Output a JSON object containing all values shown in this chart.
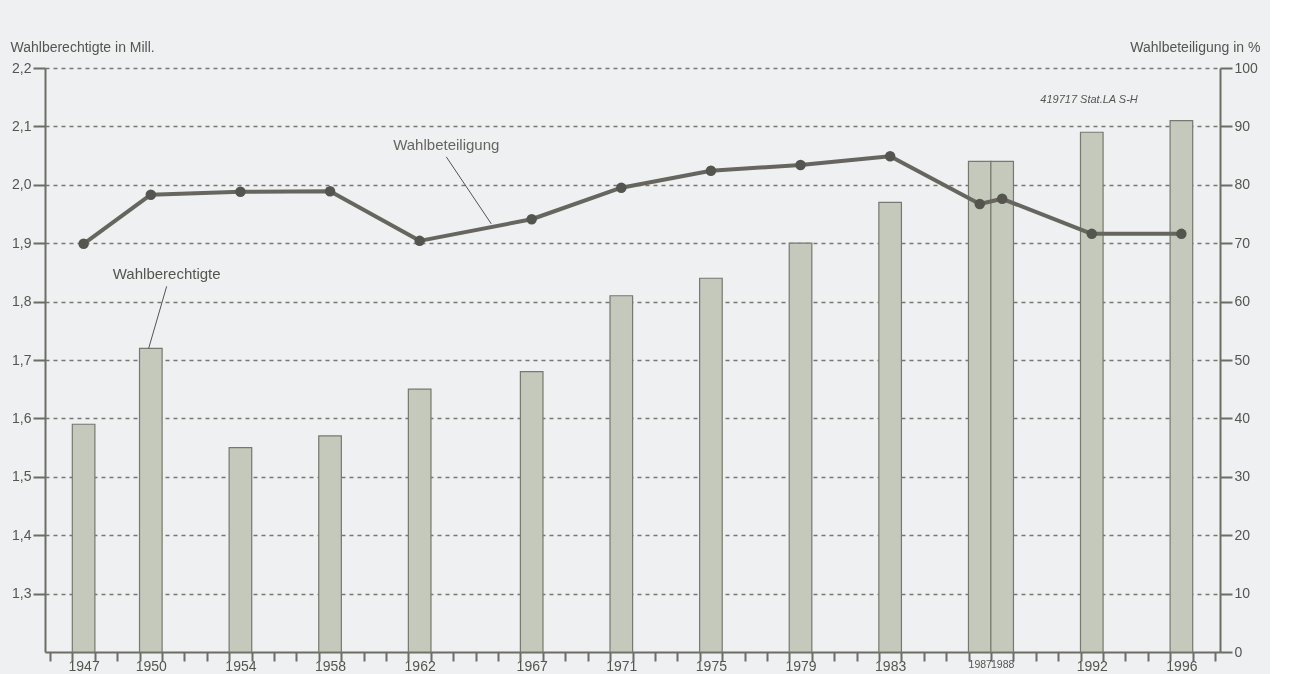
{
  "chart_data": {
    "type": "bar",
    "ylabel": "Wahlberechtigte in Mill.",
    "y2label": "Wahlbeteiligung in %",
    "x": [
      1947,
      1950,
      1954,
      1958,
      1962,
      1967,
      1971,
      1975,
      1979,
      1983,
      1987,
      1988,
      1992,
      1996
    ],
    "series": [
      {
        "name": "Wahlberechtigte",
        "color": "#c5c9bc",
        "values": [
          1.59,
          1.72,
          1.55,
          1.57,
          1.65,
          1.68,
          1.81,
          1.84,
          1.9,
          1.97,
          2.04,
          2.04,
          2.09,
          2.11
        ]
      },
      {
        "name": "Wahlbeteiligung",
        "type": "line",
        "axis": "y2",
        "color": "#66665f",
        "marker": "circle",
        "line_style": "solid",
        "values": [
          69.9,
          78.3,
          78.8,
          78.9,
          70.4,
          74.1,
          79.5,
          82.4,
          83.4,
          84.9,
          76.7,
          77.6,
          71.6,
          71.6
        ]
      }
    ],
    "xlim": [
      1945.5,
      1997.5
    ],
    "xticks": [
      {
        "value": 1945.5,
        "label": null
      },
      {
        "value": 1946.5,
        "label": null
      },
      1947,
      {
        "value": 1947.5,
        "label": null
      },
      {
        "value": 1948.5,
        "label": null
      },
      {
        "value": 1949.5,
        "label": null
      },
      1950,
      {
        "value": 1950.5,
        "label": null
      },
      {
        "value": 1951.5,
        "label": null
      },
      {
        "value": 1952.5,
        "label": null
      },
      {
        "value": 1953.5,
        "label": null
      },
      1954,
      {
        "value": 1954.5,
        "label": null
      },
      {
        "value": 1955.5,
        "label": null
      },
      {
        "value": 1956.5,
        "label": null
      },
      {
        "value": 1957.5,
        "label": null
      },
      1958,
      {
        "value": 1958.5,
        "label": null
      },
      {
        "value": 1959.5,
        "label": null
      },
      {
        "value": 1960.5,
        "label": null
      },
      {
        "value": 1961.5,
        "label": null
      },
      1962,
      {
        "value": 1962.5,
        "label": null
      },
      {
        "value": 1963.5,
        "label": null
      },
      {
        "value": 1964.5,
        "label": null
      },
      {
        "value": 1965.5,
        "label": null
      },
      {
        "value": 1966.5,
        "label": null
      },
      1967,
      {
        "value": 1967.5,
        "label": null
      },
      {
        "value": 1968.5,
        "label": null
      },
      {
        "value": 1969.5,
        "label": null
      },
      {
        "value": 1970.5,
        "label": null
      },
      1971,
      {
        "value": 1971.5,
        "label": null
      },
      {
        "value": 1972.5,
        "label": null
      },
      {
        "value": 1973.5,
        "label": null
      },
      {
        "value": 1974.5,
        "label": null
      },
      1975,
      {
        "value": 1975.5,
        "label": null
      },
      {
        "value": 1976.5,
        "label": null
      },
      {
        "value": 1977.5,
        "label": null
      },
      {
        "value": 1978.5,
        "label": null
      },
      1979,
      {
        "value": 1979.5,
        "label": null
      },
      {
        "value": 1980.5,
        "label": null
      },
      {
        "value": 1981.5,
        "label": null
      },
      {
        "value": 1982.5,
        "label": null
      },
      1983,
      {
        "value": 1983.5,
        "label": null
      },
      {
        "value": 1984.5,
        "label": null
      },
      {
        "value": 1985.5,
        "label": null
      },
      {
        "value": 1986.5,
        "label": null
      },
      1987,
      {
        "value": 1987.5,
        "label": null
      },
      1988,
      {
        "value": 1988.5,
        "label": null
      },
      {
        "value": 1989.5,
        "label": null
      },
      {
        "value": 1990.5,
        "label": null
      },
      {
        "value": 1991.5,
        "label": null
      },
      1992,
      {
        "value": 1992.5,
        "label": null
      },
      {
        "value": 1993.5,
        "label": null
      },
      {
        "value": 1994.5,
        "label": null
      },
      {
        "value": 1995.5,
        "label": null
      },
      1996,
      {
        "value": 1996.5,
        "label": null
      },
      {
        "value": 1997.5,
        "label": null
      }
    ],
    "ylim": [
      1.2,
      2.2
    ],
    "yticks": [
      {
        "value": 1.3,
        "label": "1,3"
      },
      {
        "value": 1.4,
        "label": "1,4"
      },
      {
        "value": 1.5,
        "label": "1,5"
      },
      {
        "value": 1.6,
        "label": "1,6"
      },
      {
        "value": 1.7,
        "label": "1,7"
      },
      {
        "value": 1.8,
        "label": "1,8"
      },
      {
        "value": 1.9,
        "label": "1,9"
      },
      {
        "value": 2.0,
        "label": "2,0"
      },
      {
        "value": 2.1,
        "label": "2,1"
      },
      {
        "value": 2.2,
        "label": "2,2"
      }
    ],
    "y2lim": [
      0,
      100
    ],
    "y2ticks": [
      0,
      10,
      20,
      30,
      40,
      50,
      60,
      70,
      80,
      90,
      100
    ],
    "grid": "y",
    "annotations": [
      "419717 Stat.LA S-H"
    ]
  }
}
